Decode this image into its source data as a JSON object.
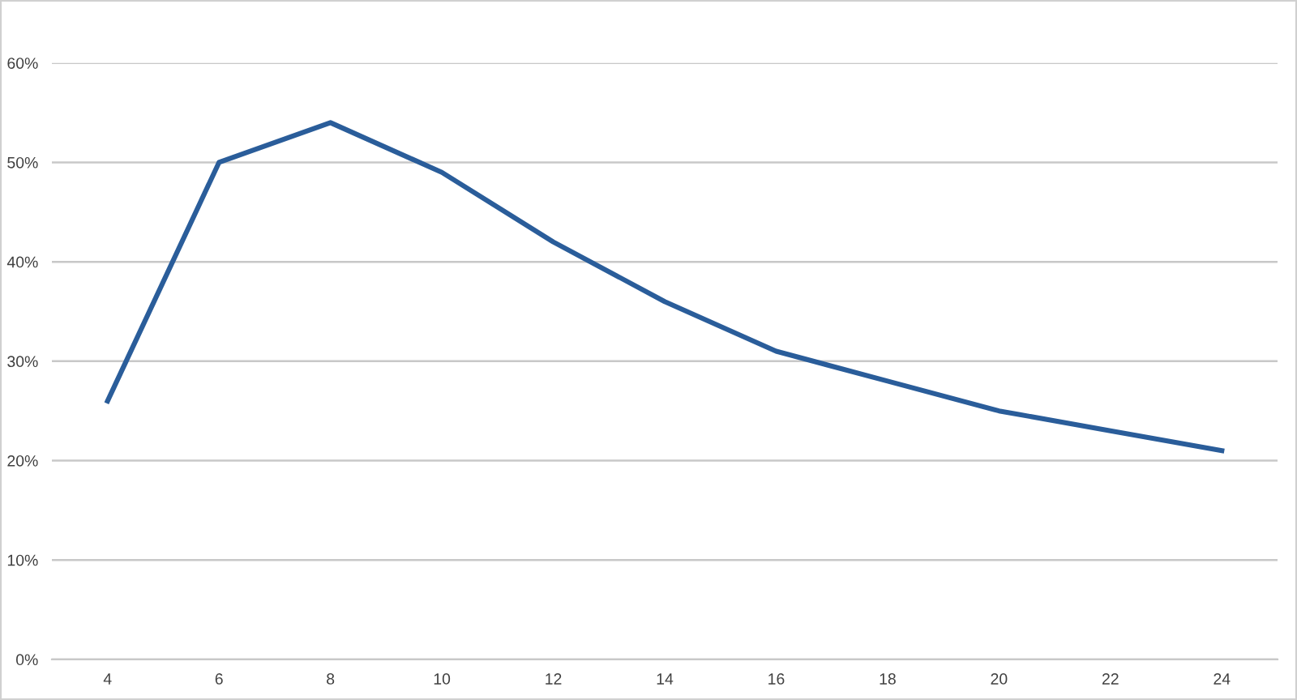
{
  "chart_data": {
    "type": "line",
    "categories": [
      "4",
      "6",
      "8",
      "10",
      "12",
      "14",
      "16",
      "18",
      "20",
      "22",
      "24"
    ],
    "series": [
      {
        "color": "#2a5d9a",
        "values": [
          26,
          50,
          54,
          49,
          42,
          36,
          31,
          28,
          25,
          23,
          21
        ]
      }
    ],
    "ylim": [
      0,
      60
    ],
    "yticks": [
      {
        "value": 0,
        "label": "0%"
      },
      {
        "value": 10,
        "label": "10%"
      },
      {
        "value": 20,
        "label": "20%"
      },
      {
        "value": 30,
        "label": "30%"
      },
      {
        "value": 40,
        "label": "40%"
      },
      {
        "value": 50,
        "label": "50%"
      },
      {
        "value": 60,
        "label": "60%"
      }
    ],
    "grid": "y",
    "marker": "none",
    "line_style": "solid"
  }
}
